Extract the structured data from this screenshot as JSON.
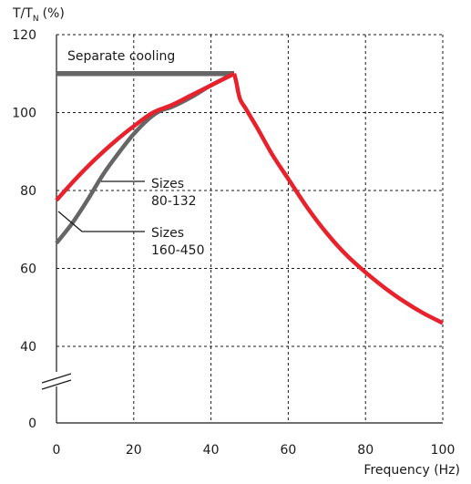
{
  "chart_data": {
    "type": "line",
    "y_axis_label": "T/T",
    "y_axis_label_subscript": "N",
    "y_axis_unit": "(%)",
    "xlabel": "Frequency (Hz)",
    "xlim": [
      0,
      100
    ],
    "ylim": [
      0,
      120
    ],
    "x_ticks": [
      0,
      20,
      40,
      60,
      80,
      100
    ],
    "y_ticks": [
      0,
      40,
      60,
      80,
      100,
      120
    ],
    "axis_break": "between 0 and 40",
    "grid": true,
    "series": [
      {
        "name": "Separate cooling",
        "color": "#666666",
        "points": [
          [
            0,
            110
          ],
          [
            46,
            110
          ]
        ]
      },
      {
        "name": "Sizes 80-132",
        "color": "#e8222c",
        "points": [
          [
            0,
            77.5
          ],
          [
            5,
            83
          ],
          [
            10,
            88
          ],
          [
            15,
            92.5
          ],
          [
            20,
            96.5
          ],
          [
            25,
            100
          ],
          [
            30,
            102
          ],
          [
            35,
            104.5
          ],
          [
            40,
            107
          ],
          [
            46,
            110
          ],
          [
            46.5,
            108
          ],
          [
            47.5,
            103.5
          ],
          [
            49,
            101
          ],
          [
            52,
            96
          ],
          [
            56,
            89
          ],
          [
            60,
            83
          ],
          [
            65,
            75.5
          ],
          [
            70,
            69
          ],
          [
            75,
            63.5
          ],
          [
            80,
            59
          ],
          [
            85,
            55
          ],
          [
            90,
            51.5
          ],
          [
            95,
            48.5
          ],
          [
            100,
            46
          ]
        ]
      },
      {
        "name": "Sizes 160-450",
        "color": "#666666",
        "points": [
          [
            0,
            66.5
          ],
          [
            4,
            71.5
          ],
          [
            8,
            77.5
          ],
          [
            12,
            84
          ],
          [
            16,
            89.5
          ],
          [
            20,
            94.5
          ],
          [
            24,
            98.5
          ],
          [
            27,
            100.5
          ],
          [
            30,
            101.5
          ],
          [
            35,
            104
          ],
          [
            40,
            107
          ],
          [
            46,
            110
          ]
        ]
      }
    ],
    "annotations": [
      {
        "id": "separate",
        "lines": [
          "Separate cooling"
        ]
      },
      {
        "id": "s80",
        "lines": [
          "Sizes",
          "80-132"
        ]
      },
      {
        "id": "s160",
        "lines": [
          "Sizes",
          "160-450"
        ]
      }
    ]
  }
}
